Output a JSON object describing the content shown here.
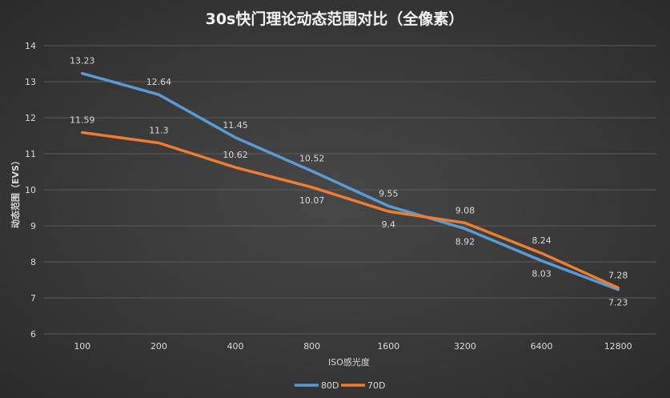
{
  "chart_data": {
    "type": "line",
    "title": "30s快门理论动态范围对比（全像素）",
    "xlabel": "ISO感光度",
    "ylabel": "动态范围（EVS）",
    "categories": [
      "100",
      "200",
      "400",
      "800",
      "1600",
      "3200",
      "6400",
      "12800"
    ],
    "ylim": [
      6,
      14
    ],
    "yticks": [
      6,
      7,
      8,
      9,
      10,
      11,
      12,
      13,
      14
    ],
    "grid": true,
    "legend_position": "bottom",
    "series": [
      {
        "name": "80D",
        "color": "#5b9bd5",
        "values": [
          13.23,
          12.64,
          11.45,
          10.52,
          9.55,
          8.92,
          8.03,
          7.23
        ]
      },
      {
        "name": "70D",
        "color": "#ed7d31",
        "values": [
          11.59,
          11.3,
          10.62,
          10.07,
          9.4,
          9.08,
          8.24,
          7.28
        ]
      }
    ]
  }
}
